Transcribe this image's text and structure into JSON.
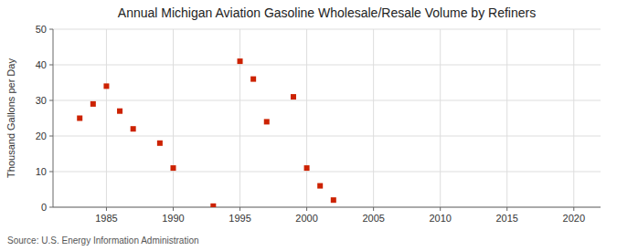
{
  "chart_data": {
    "type": "scatter",
    "title": "Annual Michigan Aviation Gasoline Wholesale/Resale Volume by Refiners",
    "ylabel": "Thousand Gallons per Day",
    "source": "Source: U.S. Energy Information Administration",
    "x": [
      1983,
      1984,
      1985,
      1986,
      1987,
      1989,
      1990,
      1993,
      1995,
      1996,
      1997,
      1999,
      2000,
      2001,
      2002
    ],
    "values": [
      25,
      29,
      34,
      27,
      22,
      18,
      11,
      0.3,
      41,
      36,
      24,
      31,
      11,
      6,
      2
    ],
    "color": "#cc2200",
    "marker": "square",
    "xlim": [
      1981,
      2022
    ],
    "ylim": [
      0,
      50
    ],
    "xticks": [
      1985,
      1990,
      1995,
      2000,
      2005,
      2010,
      2015,
      2020
    ],
    "yticks": [
      0,
      10,
      20,
      30,
      40,
      50
    ],
    "grid": true
  }
}
